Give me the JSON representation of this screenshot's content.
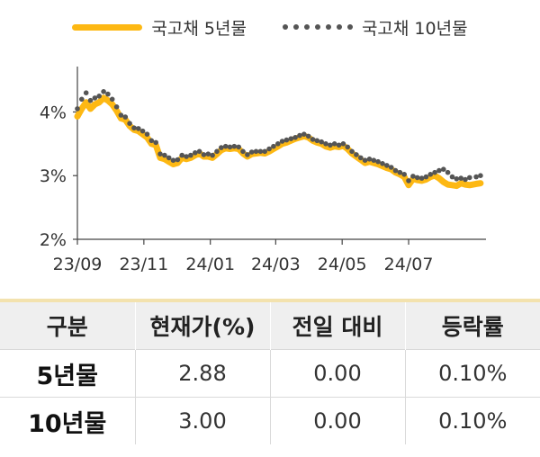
{
  "chart_data": {
    "type": "line",
    "xlabel": "",
    "ylabel": "",
    "x_tick_labels": [
      "23/09",
      "23/11",
      "24/01",
      "24/03",
      "24/05",
      "24/07"
    ],
    "x_tick_dates": [
      "2023-09-01",
      "2023-11-01",
      "2024-01-01",
      "2024-03-01",
      "2024-05-01",
      "2024-07-01"
    ],
    "x_range": [
      "2023-09-01",
      "2024-09-10"
    ],
    "y_tick_labels": [
      "2%",
      "3%",
      "4%"
    ],
    "y_ticks": [
      2,
      3,
      4
    ],
    "ylim": [
      2,
      4.6
    ],
    "legend_position": "top",
    "grid": false,
    "series": [
      {
        "name": "국고채 5년물",
        "style": "solid",
        "color": "#FDB813",
        "points": [
          [
            "2023-09-01",
            3.93
          ],
          [
            "2023-09-05",
            4.05
          ],
          [
            "2023-09-09",
            4.15
          ],
          [
            "2023-09-13",
            4.05
          ],
          [
            "2023-09-17",
            4.12
          ],
          [
            "2023-09-21",
            4.15
          ],
          [
            "2023-09-25",
            4.22
          ],
          [
            "2023-09-29",
            4.18
          ],
          [
            "2023-10-03",
            4.12
          ],
          [
            "2023-10-07",
            4.02
          ],
          [
            "2023-10-11",
            3.9
          ],
          [
            "2023-10-15",
            3.88
          ],
          [
            "2023-10-19",
            3.78
          ],
          [
            "2023-10-23",
            3.72
          ],
          [
            "2023-10-27",
            3.7
          ],
          [
            "2023-10-31",
            3.65
          ],
          [
            "2023-11-04",
            3.6
          ],
          [
            "2023-11-08",
            3.5
          ],
          [
            "2023-11-12",
            3.48
          ],
          [
            "2023-11-16",
            3.28
          ],
          [
            "2023-11-20",
            3.26
          ],
          [
            "2023-11-24",
            3.22
          ],
          [
            "2023-11-28",
            3.18
          ],
          [
            "2023-12-02",
            3.2
          ],
          [
            "2023-12-06",
            3.28
          ],
          [
            "2023-12-10",
            3.26
          ],
          [
            "2023-12-14",
            3.28
          ],
          [
            "2023-12-18",
            3.32
          ],
          [
            "2023-12-22",
            3.35
          ],
          [
            "2023-12-26",
            3.3
          ],
          [
            "2023-12-30",
            3.3
          ],
          [
            "2024-01-03",
            3.28
          ],
          [
            "2024-01-07",
            3.34
          ],
          [
            "2024-01-11",
            3.4
          ],
          [
            "2024-01-15",
            3.43
          ],
          [
            "2024-01-19",
            3.42
          ],
          [
            "2024-01-23",
            3.43
          ],
          [
            "2024-01-27",
            3.42
          ],
          [
            "2024-01-31",
            3.35
          ],
          [
            "2024-02-04",
            3.3
          ],
          [
            "2024-02-08",
            3.34
          ],
          [
            "2024-02-12",
            3.35
          ],
          [
            "2024-02-16",
            3.36
          ],
          [
            "2024-02-20",
            3.35
          ],
          [
            "2024-02-24",
            3.38
          ],
          [
            "2024-02-28",
            3.42
          ],
          [
            "2024-03-03",
            3.46
          ],
          [
            "2024-03-07",
            3.5
          ],
          [
            "2024-03-11",
            3.52
          ],
          [
            "2024-03-15",
            3.55
          ],
          [
            "2024-03-19",
            3.58
          ],
          [
            "2024-03-23",
            3.6
          ],
          [
            "2024-03-27",
            3.62
          ],
          [
            "2024-03-31",
            3.6
          ],
          [
            "2024-04-04",
            3.55
          ],
          [
            "2024-04-08",
            3.52
          ],
          [
            "2024-04-12",
            3.5
          ],
          [
            "2024-04-16",
            3.46
          ],
          [
            "2024-04-20",
            3.44
          ],
          [
            "2024-04-24",
            3.46
          ],
          [
            "2024-04-28",
            3.45
          ],
          [
            "2024-05-02",
            3.47
          ],
          [
            "2024-05-06",
            3.42
          ],
          [
            "2024-05-10",
            3.35
          ],
          [
            "2024-05-14",
            3.3
          ],
          [
            "2024-05-18",
            3.25
          ],
          [
            "2024-05-22",
            3.2
          ],
          [
            "2024-05-26",
            3.22
          ],
          [
            "2024-05-30",
            3.2
          ],
          [
            "2024-06-03",
            3.18
          ],
          [
            "2024-06-07",
            3.15
          ],
          [
            "2024-06-11",
            3.12
          ],
          [
            "2024-06-15",
            3.1
          ],
          [
            "2024-06-19",
            3.05
          ],
          [
            "2024-06-23",
            3.02
          ],
          [
            "2024-06-27",
            2.98
          ],
          [
            "2024-07-01",
            2.85
          ],
          [
            "2024-07-05",
            2.95
          ],
          [
            "2024-07-09",
            2.93
          ],
          [
            "2024-07-13",
            2.92
          ],
          [
            "2024-07-17",
            2.94
          ],
          [
            "2024-07-21",
            2.98
          ],
          [
            "2024-07-25",
            3.0
          ],
          [
            "2024-07-29",
            2.96
          ],
          [
            "2024-08-02",
            2.9
          ],
          [
            "2024-08-06",
            2.86
          ],
          [
            "2024-08-10",
            2.85
          ],
          [
            "2024-08-14",
            2.84
          ],
          [
            "2024-08-18",
            2.88
          ],
          [
            "2024-08-22",
            2.86
          ],
          [
            "2024-08-26",
            2.85
          ],
          [
            "2024-09-01",
            2.87
          ],
          [
            "2024-09-05",
            2.88
          ]
        ]
      },
      {
        "name": "국고채 10년물",
        "style": "dotted",
        "color": "#555555",
        "points": [
          [
            "2023-09-01",
            4.05
          ],
          [
            "2023-09-05",
            4.2
          ],
          [
            "2023-09-09",
            4.3
          ],
          [
            "2023-09-13",
            4.18
          ],
          [
            "2023-09-17",
            4.22
          ],
          [
            "2023-09-21",
            4.25
          ],
          [
            "2023-09-25",
            4.32
          ],
          [
            "2023-09-29",
            4.28
          ],
          [
            "2023-10-03",
            4.2
          ],
          [
            "2023-10-07",
            4.08
          ],
          [
            "2023-10-11",
            3.95
          ],
          [
            "2023-10-15",
            3.92
          ],
          [
            "2023-10-19",
            3.82
          ],
          [
            "2023-10-23",
            3.75
          ],
          [
            "2023-10-27",
            3.74
          ],
          [
            "2023-10-31",
            3.7
          ],
          [
            "2023-11-04",
            3.65
          ],
          [
            "2023-11-08",
            3.55
          ],
          [
            "2023-11-12",
            3.52
          ],
          [
            "2023-11-16",
            3.34
          ],
          [
            "2023-11-20",
            3.32
          ],
          [
            "2023-11-24",
            3.28
          ],
          [
            "2023-11-28",
            3.24
          ],
          [
            "2023-12-02",
            3.25
          ],
          [
            "2023-12-06",
            3.32
          ],
          [
            "2023-12-10",
            3.3
          ],
          [
            "2023-12-14",
            3.32
          ],
          [
            "2023-12-18",
            3.36
          ],
          [
            "2023-12-22",
            3.38
          ],
          [
            "2023-12-26",
            3.33
          ],
          [
            "2023-12-30",
            3.34
          ],
          [
            "2024-01-03",
            3.32
          ],
          [
            "2024-01-07",
            3.38
          ],
          [
            "2024-01-11",
            3.44
          ],
          [
            "2024-01-15",
            3.46
          ],
          [
            "2024-01-19",
            3.45
          ],
          [
            "2024-01-23",
            3.46
          ],
          [
            "2024-01-27",
            3.45
          ],
          [
            "2024-01-31",
            3.38
          ],
          [
            "2024-02-04",
            3.33
          ],
          [
            "2024-02-08",
            3.37
          ],
          [
            "2024-02-12",
            3.38
          ],
          [
            "2024-02-16",
            3.38
          ],
          [
            "2024-02-20",
            3.38
          ],
          [
            "2024-02-24",
            3.42
          ],
          [
            "2024-02-28",
            3.46
          ],
          [
            "2024-03-03",
            3.5
          ],
          [
            "2024-03-07",
            3.54
          ],
          [
            "2024-03-11",
            3.56
          ],
          [
            "2024-03-15",
            3.58
          ],
          [
            "2024-03-19",
            3.6
          ],
          [
            "2024-03-23",
            3.63
          ],
          [
            "2024-03-27",
            3.65
          ],
          [
            "2024-03-31",
            3.62
          ],
          [
            "2024-04-04",
            3.57
          ],
          [
            "2024-04-08",
            3.55
          ],
          [
            "2024-04-12",
            3.53
          ],
          [
            "2024-04-16",
            3.5
          ],
          [
            "2024-04-20",
            3.48
          ],
          [
            "2024-04-24",
            3.5
          ],
          [
            "2024-04-28",
            3.48
          ],
          [
            "2024-05-02",
            3.5
          ],
          [
            "2024-05-06",
            3.45
          ],
          [
            "2024-05-10",
            3.38
          ],
          [
            "2024-05-14",
            3.33
          ],
          [
            "2024-05-18",
            3.28
          ],
          [
            "2024-05-22",
            3.24
          ],
          [
            "2024-05-26",
            3.26
          ],
          [
            "2024-05-30",
            3.24
          ],
          [
            "2024-06-03",
            3.22
          ],
          [
            "2024-06-07",
            3.19
          ],
          [
            "2024-06-11",
            3.16
          ],
          [
            "2024-06-15",
            3.13
          ],
          [
            "2024-06-19",
            3.08
          ],
          [
            "2024-06-23",
            3.05
          ],
          [
            "2024-06-27",
            3.02
          ],
          [
            "2024-07-01",
            2.92
          ],
          [
            "2024-07-05",
            2.99
          ],
          [
            "2024-07-09",
            2.97
          ],
          [
            "2024-07-13",
            2.96
          ],
          [
            "2024-07-17",
            2.98
          ],
          [
            "2024-07-21",
            3.02
          ],
          [
            "2024-07-25",
            3.05
          ],
          [
            "2024-07-29",
            3.08
          ],
          [
            "2024-08-02",
            3.1
          ],
          [
            "2024-08-06",
            3.05
          ],
          [
            "2024-08-10",
            2.98
          ],
          [
            "2024-08-14",
            2.95
          ],
          [
            "2024-08-18",
            2.96
          ],
          [
            "2024-08-22",
            2.94
          ],
          [
            "2024-08-26",
            2.97
          ],
          [
            "2024-09-01",
            2.98
          ],
          [
            "2024-09-05",
            3.0
          ]
        ]
      }
    ]
  },
  "table": {
    "headers": [
      "구분",
      "현재가(%)",
      "전일 대비",
      "등락률"
    ],
    "rows": [
      [
        "5년물",
        "2.88",
        "0.00",
        "0.10%"
      ],
      [
        "10년물",
        "3.00",
        "0.00",
        "0.10%"
      ]
    ]
  }
}
